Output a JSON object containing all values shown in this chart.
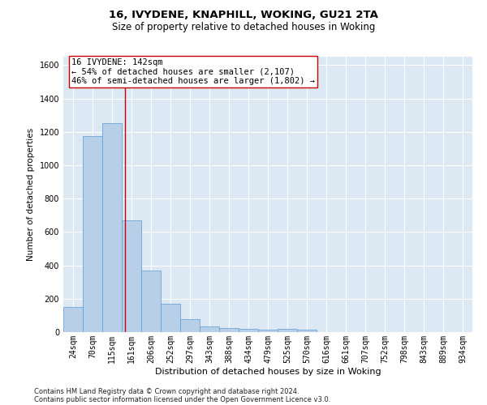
{
  "title1": "16, IVYDENE, KNAPHILL, WOKING, GU21 2TA",
  "title2": "Size of property relative to detached houses in Woking",
  "xlabel": "Distribution of detached houses by size in Woking",
  "ylabel": "Number of detached properties",
  "bar_labels": [
    "24sqm",
    "70sqm",
    "115sqm",
    "161sqm",
    "206sqm",
    "252sqm",
    "297sqm",
    "343sqm",
    "388sqm",
    "434sqm",
    "479sqm",
    "525sqm",
    "570sqm",
    "616sqm",
    "661sqm",
    "707sqm",
    "752sqm",
    "798sqm",
    "843sqm",
    "889sqm",
    "934sqm"
  ],
  "bar_values": [
    150,
    1175,
    1250,
    670,
    370,
    170,
    80,
    35,
    25,
    20,
    15,
    20,
    15,
    0,
    0,
    0,
    0,
    0,
    0,
    0,
    0
  ],
  "bar_color": "#b8cfe8",
  "bar_edge_color": "#5b9bd5",
  "background_color": "#dde8f5",
  "grid_color": "#ffffff",
  "vline_x": 2.65,
  "vline_color": "#cc0000",
  "annotation_text": "16 IVYDENE: 142sqm\n← 54% of detached houses are smaller (2,107)\n46% of semi-detached houses are larger (1,802) →",
  "annotation_box_color": "#cc0000",
  "ylim": [
    0,
    1650
  ],
  "yticks": [
    0,
    200,
    400,
    600,
    800,
    1000,
    1200,
    1400,
    1600
  ],
  "footer1": "Contains HM Land Registry data © Crown copyright and database right 2024.",
  "footer2": "Contains public sector information licensed under the Open Government Licence v3.0.",
  "title1_fontsize": 9.5,
  "title2_fontsize": 8.5,
  "xlabel_fontsize": 8,
  "ylabel_fontsize": 7.5,
  "tick_fontsize": 7,
  "annotation_fontsize": 7.5,
  "footer_fontsize": 6
}
